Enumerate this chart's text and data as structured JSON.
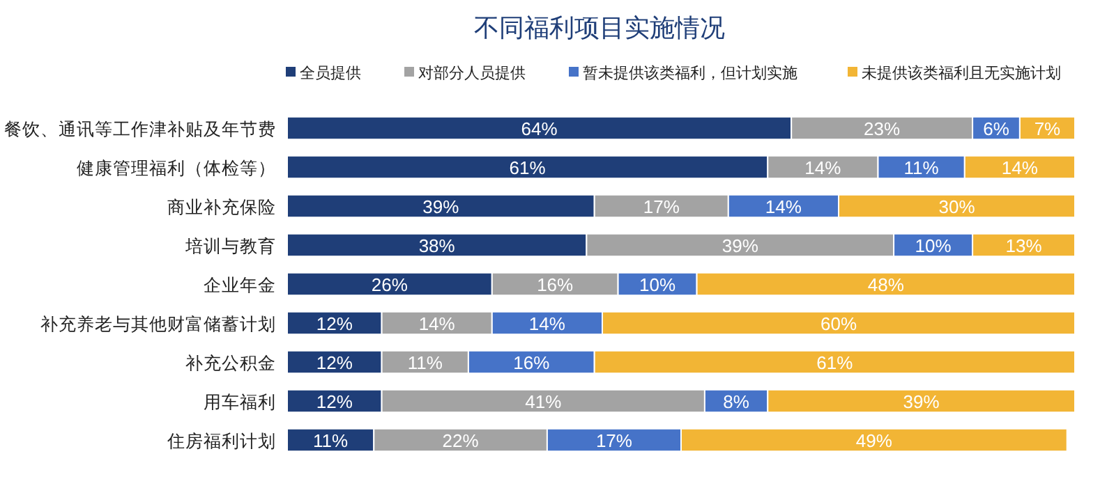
{
  "chart_data": {
    "type": "bar",
    "orientation": "horizontal",
    "stacked": true,
    "title": "不同福利项目实施情况",
    "legend": "top",
    "tick_labels": "y",
    "categories": [
      "餐饮、通讯等工作津补贴及年节费",
      "健康管理福利（体检等）",
      "商业补充保险",
      "培训与教育",
      "企业年金",
      "补充养老与其他财富储蓄计划",
      "补充公积金",
      "用车福利",
      "住房福利计划"
    ],
    "series": [
      {
        "name": "全员提供",
        "color": "#1f3e78",
        "values": [
          64,
          61,
          39,
          38,
          26,
          12,
          12,
          12,
          11
        ],
        "value_labels": [
          "64%",
          "61%",
          "39%",
          "38%",
          "26%",
          "12%",
          "12%",
          "12%",
          "11%"
        ]
      },
      {
        "name": "对部分人员提供",
        "color": "#a3a3a3",
        "values": [
          23,
          14,
          17,
          39,
          16,
          14,
          11,
          41,
          22
        ],
        "value_labels": [
          "23%",
          "14%",
          "17%",
          "39%",
          "16%",
          "14%",
          "11%",
          "41%",
          "22%"
        ]
      },
      {
        "name": "暂未提供该类福利，但计划实施",
        "color": "#4673c8",
        "values": [
          6,
          11,
          14,
          10,
          10,
          14,
          16,
          8,
          17
        ],
        "value_labels": [
          "6%",
          "11%",
          "14%",
          "10%",
          "10%",
          "14%",
          "16%",
          "8%",
          "17%"
        ]
      },
      {
        "name": "未提供该类福利且无实施计划",
        "color": "#f2b535",
        "values": [
          7,
          14,
          30,
          13,
          48,
          60,
          61,
          39,
          49
        ],
        "value_labels": [
          "7%",
          "14%",
          "30%",
          "13%",
          "48%",
          "60%",
          "61%",
          "39%",
          "49%"
        ]
      }
    ]
  }
}
